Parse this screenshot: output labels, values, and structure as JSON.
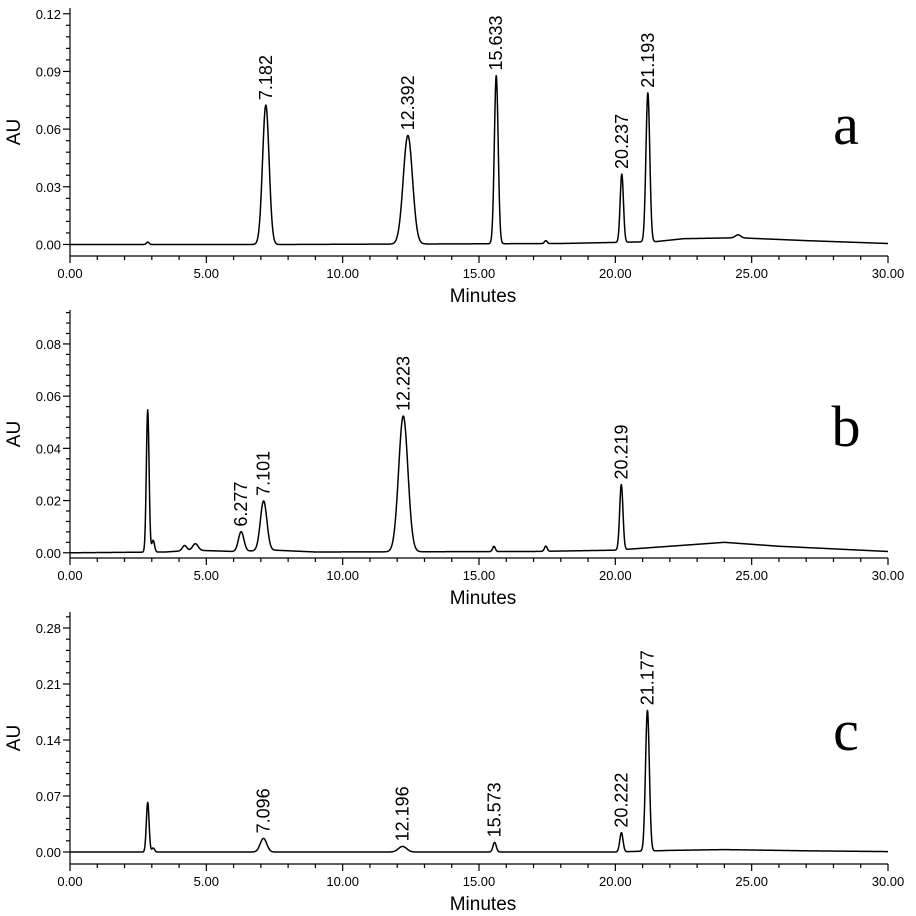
{
  "chart_data": [
    {
      "type": "line",
      "panel_label": "a",
      "xlabel": "Minutes",
      "ylabel": "AU",
      "xlim": [
        0,
        30
      ],
      "ylim": [
        -0.006,
        0.123
      ],
      "x_ticks": [
        "0.00",
        "5.00",
        "10.00",
        "15.00",
        "20.00",
        "25.00",
        "30.00"
      ],
      "y_ticks": [
        {
          "value": 0.0,
          "label": "0.00"
        },
        {
          "value": 0.03,
          "label": "0.03"
        },
        {
          "value": 0.06,
          "label": "0.06"
        },
        {
          "value": 0.09,
          "label": "0.09"
        },
        {
          "value": 0.12,
          "label": "0.12"
        }
      ],
      "peaks": [
        {
          "rt": 2.85,
          "height": 0.0012,
          "width": 0.05
        },
        {
          "rt": 7.182,
          "height": 0.0725,
          "width": 0.12,
          "label": "7.182"
        },
        {
          "rt": 12.392,
          "height": 0.0565,
          "width": 0.17,
          "label": "12.392"
        },
        {
          "rt": 15.633,
          "height": 0.0875,
          "width": 0.07,
          "label": "15.633"
        },
        {
          "rt": 17.45,
          "height": 0.0015,
          "width": 0.05
        },
        {
          "rt": 20.237,
          "height": 0.0355,
          "width": 0.06,
          "label": "20.237"
        },
        {
          "rt": 21.193,
          "height": 0.0775,
          "width": 0.07,
          "label": "21.193"
        },
        {
          "rt": 24.5,
          "height": 0.0015,
          "width": 0.1
        }
      ],
      "baseline": [
        [
          0,
          0.0
        ],
        [
          8,
          0.0
        ],
        [
          18,
          0.0005
        ],
        [
          21.5,
          0.0015
        ],
        [
          22.5,
          0.003
        ],
        [
          24.5,
          0.0035
        ],
        [
          27,
          0.002
        ],
        [
          30,
          0.0005
        ]
      ]
    },
    {
      "type": "line",
      "panel_label": "b",
      "xlabel": "Minutes",
      "ylabel": "AU",
      "xlim": [
        0,
        30
      ],
      "ylim": [
        -0.002,
        0.093
      ],
      "x_ticks": [
        "0.00",
        "5.00",
        "10.00",
        "15.00",
        "20.00",
        "25.00",
        "30.00"
      ],
      "y_ticks": [
        {
          "value": 0.0,
          "label": "0.00"
        },
        {
          "value": 0.02,
          "label": "0.02"
        },
        {
          "value": 0.04,
          "label": "0.04"
        },
        {
          "value": 0.06,
          "label": "0.06"
        },
        {
          "value": 0.08,
          "label": "0.08"
        }
      ],
      "peaks": [
        {
          "rt": 2.85,
          "height": 0.0545,
          "width": 0.05
        },
        {
          "rt": 3.05,
          "height": 0.0045,
          "width": 0.05
        },
        {
          "rt": 4.2,
          "height": 0.002,
          "width": 0.08
        },
        {
          "rt": 4.6,
          "height": 0.0025,
          "width": 0.1
        },
        {
          "rt": 6.277,
          "height": 0.0075,
          "width": 0.1,
          "label": "6.277"
        },
        {
          "rt": 7.101,
          "height": 0.019,
          "width": 0.12,
          "label": "7.101"
        },
        {
          "rt": 12.223,
          "height": 0.052,
          "width": 0.17,
          "label": "12.223"
        },
        {
          "rt": 15.55,
          "height": 0.002,
          "width": 0.05
        },
        {
          "rt": 17.45,
          "height": 0.002,
          "width": 0.05
        },
        {
          "rt": 20.219,
          "height": 0.025,
          "width": 0.06,
          "label": "20.219"
        }
      ],
      "baseline": [
        [
          0,
          0.0
        ],
        [
          3.5,
          0.0003
        ],
        [
          4.5,
          0.001
        ],
        [
          6,
          0.0005
        ],
        [
          7.5,
          0.001
        ],
        [
          9,
          0.0003
        ],
        [
          17,
          0.0005
        ],
        [
          20,
          0.001
        ],
        [
          22,
          0.0025
        ],
        [
          24,
          0.004
        ],
        [
          26,
          0.0025
        ],
        [
          30,
          0.0005
        ]
      ]
    },
    {
      "type": "line",
      "panel_label": "c",
      "xlabel": "Minutes",
      "ylabel": "AU",
      "xlim": [
        0,
        30
      ],
      "ylim": [
        -0.015,
        0.3
      ],
      "x_ticks": [
        "0.00",
        "5.00",
        "10.00",
        "15.00",
        "20.00",
        "25.00",
        "30.00"
      ],
      "y_ticks": [
        {
          "value": 0.0,
          "label": "0.00"
        },
        {
          "value": 0.07,
          "label": "0.07"
        },
        {
          "value": 0.14,
          "label": "0.14"
        },
        {
          "value": 0.21,
          "label": "0.21"
        },
        {
          "value": 0.28,
          "label": "0.28"
        }
      ],
      "peaks": [
        {
          "rt": 2.85,
          "height": 0.062,
          "width": 0.05
        },
        {
          "rt": 3.05,
          "height": 0.005,
          "width": 0.05
        },
        {
          "rt": 7.096,
          "height": 0.017,
          "width": 0.12,
          "label": "7.096"
        },
        {
          "rt": 12.196,
          "height": 0.007,
          "width": 0.15,
          "label": "12.196"
        },
        {
          "rt": 15.573,
          "height": 0.012,
          "width": 0.06,
          "label": "15.573"
        },
        {
          "rt": 20.222,
          "height": 0.024,
          "width": 0.06,
          "label": "20.222"
        },
        {
          "rt": 21.177,
          "height": 0.176,
          "width": 0.07,
          "label": "21.177"
        }
      ],
      "baseline": [
        [
          0,
          0.0
        ],
        [
          20,
          0.0
        ],
        [
          22,
          0.002
        ],
        [
          24,
          0.003
        ],
        [
          27,
          0.0015
        ],
        [
          30,
          0.0005
        ]
      ]
    }
  ]
}
